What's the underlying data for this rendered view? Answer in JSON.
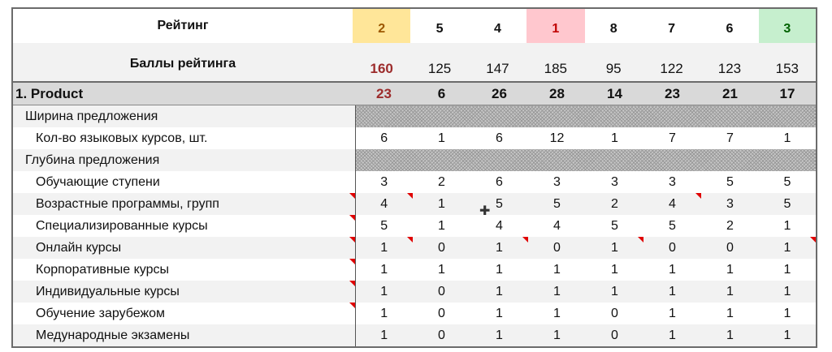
{
  "summary": {
    "rating_label": "Рейтинг",
    "ratings": [
      "2",
      "5",
      "4",
      "1",
      "8",
      "7",
      "6",
      "3"
    ],
    "score_label": "Баллы рейтинга",
    "scores": [
      "160",
      "125",
      "147",
      "185",
      "95",
      "122",
      "123",
      "153"
    ],
    "highlight_colors": {
      "yellow": "#ffe699",
      "pink": "#ffc7ce",
      "green": "#c6efce",
      "dark_red": "#9c2b2b",
      "brown": "#9c5700",
      "red_text": "#c00000",
      "green_text": "#006100"
    }
  },
  "section": {
    "title": "1. Product",
    "totals": [
      "23",
      "6",
      "26",
      "28",
      "14",
      "23",
      "21",
      "17"
    ],
    "rows": [
      {
        "label": "Ширина предложения",
        "values": []
      },
      {
        "label": "Кол-во языковых курсов, шт.",
        "values": [
          "6",
          "1",
          "6",
          "12",
          "1",
          "7",
          "7",
          "1"
        ]
      },
      {
        "label": "Глубина предложения",
        "values": []
      },
      {
        "label": "Обучающие ступени",
        "values": [
          "3",
          "2",
          "6",
          "3",
          "3",
          "3",
          "5",
          "5"
        ]
      },
      {
        "label": "Возрастные программы, групп",
        "values": [
          "4",
          "1",
          "5",
          "5",
          "2",
          "4",
          "3",
          "5"
        ]
      },
      {
        "label": "Специализированные курсы",
        "values": [
          "5",
          "1",
          "4",
          "4",
          "5",
          "5",
          "2",
          "1"
        ]
      },
      {
        "label": "Онлайн курсы",
        "values": [
          "1",
          "0",
          "1",
          "0",
          "1",
          "0",
          "0",
          "1"
        ]
      },
      {
        "label": "Корпоративные курсы",
        "values": [
          "1",
          "1",
          "1",
          "1",
          "1",
          "1",
          "1",
          "1"
        ]
      },
      {
        "label": "Индивидуальные курсы",
        "values": [
          "1",
          "0",
          "1",
          "1",
          "1",
          "1",
          "1",
          "1"
        ]
      },
      {
        "label": "Обучение зарубежом",
        "values": [
          "1",
          "0",
          "1",
          "1",
          "0",
          "1",
          "1",
          "1"
        ]
      },
      {
        "label": "Медународные экзамены",
        "values": [
          "1",
          "0",
          "1",
          "1",
          "0",
          "1",
          "1",
          "1"
        ]
      }
    ]
  }
}
